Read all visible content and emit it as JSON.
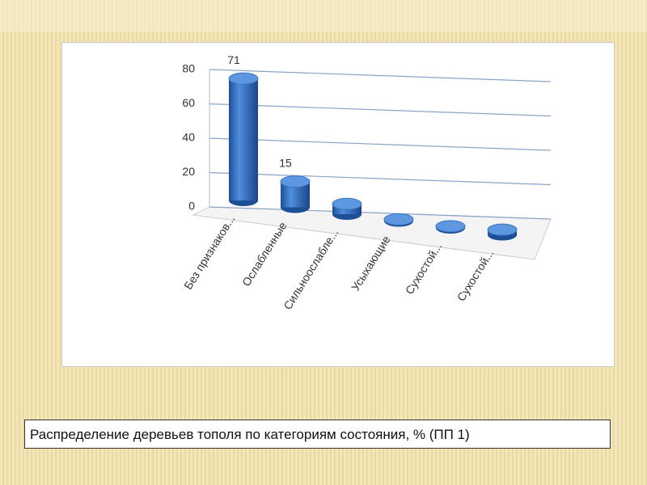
{
  "chart_data": {
    "type": "bar",
    "caption": "Распределение деревьев тополя по категориям состояния, % (ПП 1)",
    "categories": [
      "Без признаков...",
      "Ослабленные",
      "Сильноослабле...",
      "Усыхающие",
      "Сухостой...",
      "Сухостой..."
    ],
    "values": [
      71,
      15,
      6,
      1,
      1,
      3
    ],
    "color": "#2f6fc4",
    "ylim": [
      0,
      80
    ],
    "yticks": [
      0,
      20,
      40,
      60,
      80
    ],
    "grid": true
  }
}
